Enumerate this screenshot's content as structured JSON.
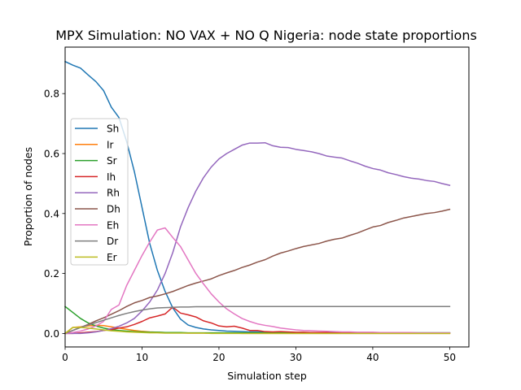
{
  "chart_data": {
    "type": "line",
    "title": "MPX Simulation: NO VAX + NO Q Nigeria: node state proportions",
    "xlabel": "Simulation step",
    "ylabel": "Proportion of nodes",
    "xlim": [
      0,
      52.5
    ],
    "ylim": [
      -0.045,
      0.955
    ],
    "xticks": [
      0,
      10,
      20,
      30,
      40,
      50
    ],
    "yticks": [
      0.0,
      0.2,
      0.4,
      0.6,
      0.8
    ],
    "xtick_labels": [
      "0",
      "10",
      "20",
      "30",
      "40",
      "50"
    ],
    "ytick_labels": [
      "0.0",
      "0.2",
      "0.4",
      "0.6",
      "0.8"
    ],
    "grid": false,
    "legend_position": "center-left",
    "x": [
      0,
      1,
      2,
      3,
      4,
      5,
      6,
      7,
      8,
      9,
      10,
      11,
      12,
      13,
      14,
      15,
      16,
      17,
      18,
      19,
      20,
      21,
      22,
      23,
      24,
      25,
      26,
      27,
      28,
      29,
      30,
      31,
      32,
      33,
      34,
      35,
      36,
      37,
      38,
      39,
      40,
      41,
      42,
      43,
      44,
      45,
      46,
      47,
      48,
      49,
      50
    ],
    "series": [
      {
        "name": "Sh",
        "color": "#1f77b4",
        "values": [
          0.907,
          0.895,
          0.885,
          0.862,
          0.84,
          0.81,
          0.755,
          0.72,
          0.64,
          0.54,
          0.42,
          0.3,
          0.21,
          0.14,
          0.085,
          0.048,
          0.028,
          0.02,
          0.015,
          0.012,
          0.01,
          0.008,
          0.007,
          0.006,
          0.005,
          0.005,
          0.004,
          0.004,
          0.004,
          0.003,
          0.003,
          0.003,
          0.003,
          0.003,
          0.003,
          0.003,
          0.002,
          0.002,
          0.002,
          0.002,
          0.002,
          0.002,
          0.002,
          0.002,
          0.002,
          0.002,
          0.002,
          0.002,
          0.002,
          0.002,
          0.002
        ]
      },
      {
        "name": "Ir",
        "color": "#ff7f0e",
        "values": [
          0.0,
          0.02,
          0.022,
          0.025,
          0.027,
          0.026,
          0.022,
          0.018,
          0.014,
          0.01,
          0.007,
          0.005,
          0.004,
          0.003,
          0.002,
          0.002,
          0.001,
          0.001,
          0.001,
          0.001,
          0.001,
          0.001,
          0.001,
          0.0,
          0.0,
          0.0,
          0.0,
          0.0,
          0.0,
          0.0,
          0.0,
          0.0,
          0.0,
          0.0,
          0.0,
          0.0,
          0.0,
          0.0,
          0.0,
          0.0,
          0.0,
          0.0,
          0.0,
          0.0,
          0.0,
          0.0,
          0.0,
          0.0,
          0.0,
          0.0,
          0.0
        ]
      },
      {
        "name": "Sr",
        "color": "#2ca02c",
        "values": [
          0.09,
          0.07,
          0.05,
          0.035,
          0.025,
          0.018,
          0.013,
          0.01,
          0.008,
          0.006,
          0.005,
          0.004,
          0.004,
          0.003,
          0.003,
          0.003,
          0.002,
          0.002,
          0.002,
          0.002,
          0.002,
          0.002,
          0.002,
          0.002,
          0.002,
          0.002,
          0.002,
          0.002,
          0.002,
          0.002,
          0.002,
          0.002,
          0.002,
          0.002,
          0.002,
          0.002,
          0.002,
          0.002,
          0.002,
          0.002,
          0.002,
          0.002,
          0.002,
          0.002,
          0.002,
          0.002,
          0.002,
          0.002,
          0.002,
          0.002,
          0.002
        ]
      },
      {
        "name": "Ih",
        "color": "#d62728",
        "values": [
          0.0,
          0.0,
          0.002,
          0.004,
          0.006,
          0.01,
          0.013,
          0.018,
          0.022,
          0.03,
          0.04,
          0.052,
          0.058,
          0.065,
          0.088,
          0.068,
          0.062,
          0.055,
          0.042,
          0.035,
          0.025,
          0.022,
          0.024,
          0.018,
          0.01,
          0.01,
          0.006,
          0.005,
          0.006,
          0.005,
          0.004,
          0.004,
          0.003,
          0.003,
          0.003,
          0.002,
          0.002,
          0.002,
          0.002,
          0.001,
          0.001,
          0.001,
          0.001,
          0.001,
          0.001,
          0.001,
          0.001,
          0.001,
          0.001,
          0.001,
          0.001
        ]
      },
      {
        "name": "Rh",
        "color": "#9467bd",
        "values": [
          0.0,
          0.0,
          0.0,
          0.002,
          0.005,
          0.01,
          0.016,
          0.024,
          0.035,
          0.05,
          0.075,
          0.105,
          0.145,
          0.2,
          0.27,
          0.355,
          0.42,
          0.475,
          0.52,
          0.555,
          0.582,
          0.6,
          0.614,
          0.628,
          0.635,
          0.635,
          0.636,
          0.626,
          0.621,
          0.62,
          0.614,
          0.61,
          0.606,
          0.6,
          0.592,
          0.588,
          0.585,
          0.576,
          0.568,
          0.558,
          0.55,
          0.545,
          0.536,
          0.53,
          0.523,
          0.518,
          0.515,
          0.51,
          0.507,
          0.5,
          0.494
        ]
      },
      {
        "name": "Dh",
        "color": "#8c564b",
        "values": [
          0.0,
          0.01,
          0.02,
          0.03,
          0.042,
          0.052,
          0.064,
          0.076,
          0.09,
          0.102,
          0.11,
          0.12,
          0.125,
          0.132,
          0.14,
          0.15,
          0.16,
          0.168,
          0.175,
          0.182,
          0.193,
          0.202,
          0.21,
          0.22,
          0.228,
          0.238,
          0.246,
          0.258,
          0.268,
          0.275,
          0.283,
          0.29,
          0.295,
          0.3,
          0.308,
          0.314,
          0.318,
          0.327,
          0.335,
          0.345,
          0.355,
          0.36,
          0.37,
          0.377,
          0.385,
          0.39,
          0.395,
          0.4,
          0.403,
          0.408,
          0.414
        ]
      },
      {
        "name": "Eh",
        "color": "#e377c2",
        "values": [
          0.0,
          0.003,
          0.008,
          0.015,
          0.025,
          0.04,
          0.08,
          0.095,
          0.16,
          0.21,
          0.26,
          0.305,
          0.345,
          0.352,
          0.32,
          0.29,
          0.245,
          0.2,
          0.165,
          0.132,
          0.105,
          0.082,
          0.065,
          0.05,
          0.04,
          0.032,
          0.027,
          0.023,
          0.018,
          0.015,
          0.012,
          0.01,
          0.009,
          0.008,
          0.007,
          0.006,
          0.005,
          0.005,
          0.004,
          0.004,
          0.004,
          0.003,
          0.003,
          0.003,
          0.003,
          0.003,
          0.002,
          0.002,
          0.002,
          0.002,
          0.002
        ]
      },
      {
        "name": "Dr",
        "color": "#7f7f7f",
        "values": [
          0.0,
          0.01,
          0.02,
          0.028,
          0.036,
          0.044,
          0.052,
          0.06,
          0.067,
          0.073,
          0.078,
          0.082,
          0.085,
          0.086,
          0.087,
          0.088,
          0.088,
          0.089,
          0.089,
          0.089,
          0.089,
          0.09,
          0.09,
          0.09,
          0.09,
          0.09,
          0.09,
          0.09,
          0.09,
          0.09,
          0.09,
          0.09,
          0.09,
          0.09,
          0.09,
          0.09,
          0.09,
          0.09,
          0.09,
          0.09,
          0.09,
          0.09,
          0.09,
          0.09,
          0.09,
          0.09,
          0.09,
          0.09,
          0.09,
          0.09,
          0.09
        ]
      },
      {
        "name": "Er",
        "color": "#bcbd22",
        "values": [
          0.0,
          0.02,
          0.02,
          0.018,
          0.015,
          0.012,
          0.009,
          0.007,
          0.005,
          0.004,
          0.003,
          0.002,
          0.002,
          0.001,
          0.001,
          0.001,
          0.001,
          0.001,
          0.001,
          0.0,
          0.0,
          0.0,
          0.0,
          0.0,
          0.0,
          0.0,
          0.0,
          0.0,
          0.0,
          0.0,
          0.0,
          0.0,
          0.0,
          0.0,
          0.0,
          0.0,
          0.0,
          0.0,
          0.0,
          0.0,
          0.0,
          0.0,
          0.0,
          0.0,
          0.0,
          0.0,
          0.0,
          0.0,
          0.0,
          0.0,
          0.0
        ]
      }
    ]
  }
}
